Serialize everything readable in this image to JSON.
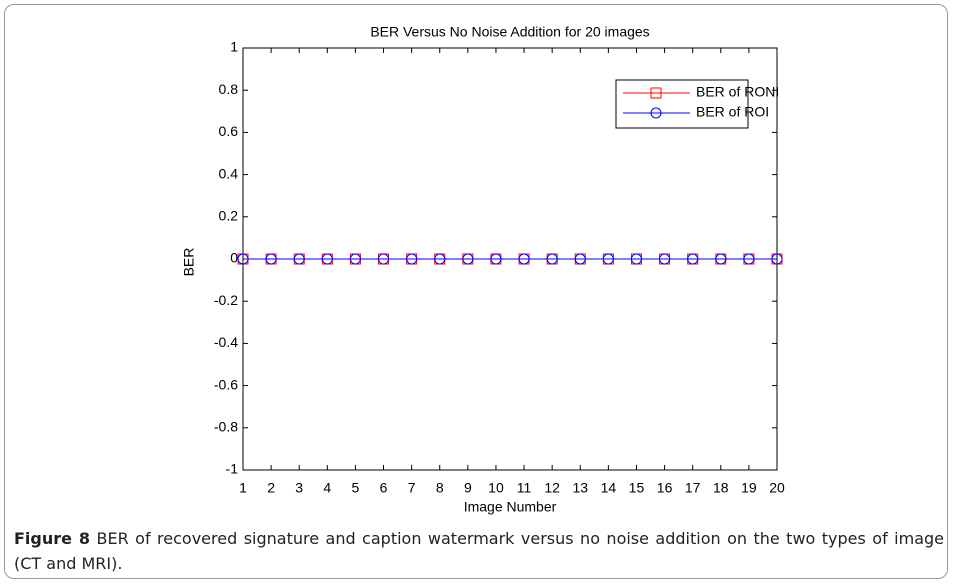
{
  "chart_data": {
    "type": "line",
    "title": "BER Versus No Noise Addition for 20 images",
    "x_label": "Image Number",
    "y_label": "BER",
    "x": [
      1,
      2,
      3,
      4,
      5,
      6,
      7,
      8,
      9,
      10,
      11,
      12,
      13,
      14,
      15,
      16,
      17,
      18,
      19,
      20
    ],
    "series": [
      {
        "name": "BER of RONI",
        "color": "#ff0000",
        "marker": "square",
        "values": [
          0,
          0,
          0,
          0,
          0,
          0,
          0,
          0,
          0,
          0,
          0,
          0,
          0,
          0,
          0,
          0,
          0,
          0,
          0,
          0
        ]
      },
      {
        "name": "BER of ROI",
        "color": "#0000ff",
        "marker": "circle",
        "values": [
          0,
          0,
          0,
          0,
          0,
          0,
          0,
          0,
          0,
          0,
          0,
          0,
          0,
          0,
          0,
          0,
          0,
          0,
          0,
          0
        ]
      }
    ],
    "xlim": [
      1,
      20
    ],
    "xticks": [
      1,
      2,
      3,
      4,
      5,
      6,
      7,
      8,
      9,
      10,
      11,
      12,
      13,
      14,
      15,
      16,
      17,
      18,
      19,
      20
    ],
    "ylim": [
      -1,
      1
    ],
    "yticks": [
      -1,
      -0.8,
      -0.6,
      -0.4,
      -0.2,
      0,
      0.2,
      0.4,
      0.6,
      0.8,
      1
    ],
    "grid": false,
    "legend": "upper right"
  },
  "caption": {
    "label": "Figure 8",
    "text": "BER of recovered signature and caption watermark versus no noise addition on the two types of image (CT and MRI)."
  }
}
